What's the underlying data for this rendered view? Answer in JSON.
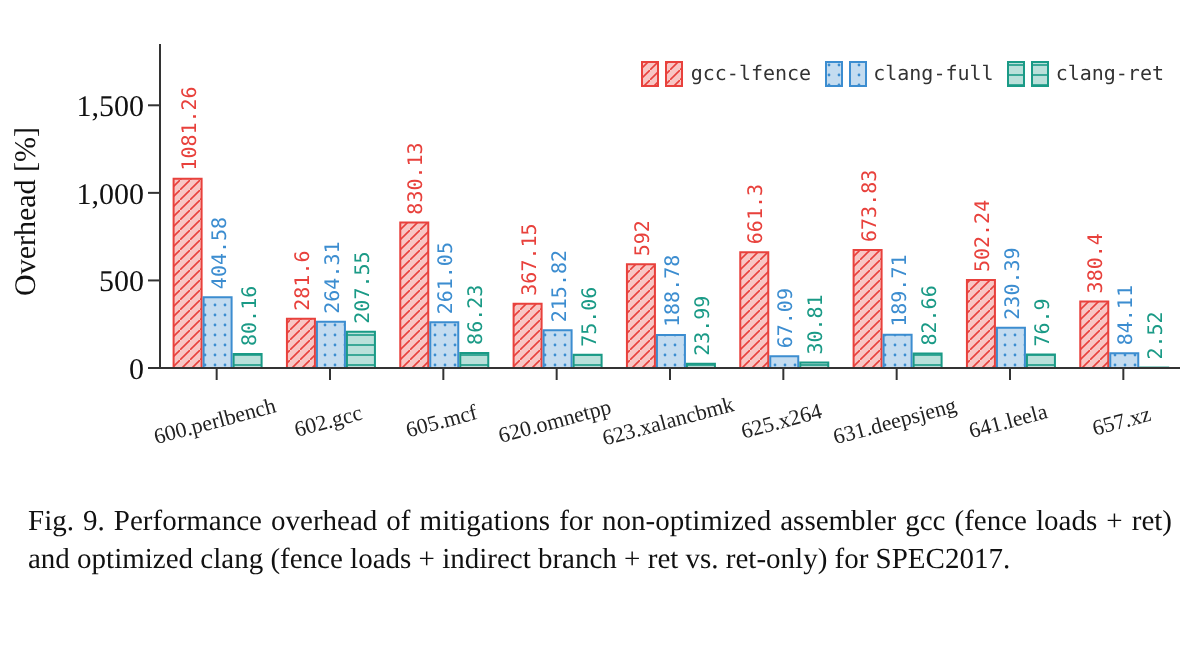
{
  "chart_data": {
    "type": "bar",
    "categories": [
      "600.perlbench",
      "602.gcc",
      "605.mcf",
      "620.omnetpp",
      "623.xalancbmk",
      "625.x264",
      "631.deepsjeng",
      "641.leela",
      "657.xz"
    ],
    "series": [
      {
        "name": "gcc-lfence",
        "color": "#e8413c",
        "values": [
          1081.26,
          281.6,
          830.13,
          367.15,
          592,
          661.3,
          673.83,
          502.24,
          380.4
        ]
      },
      {
        "name": "clang-full",
        "color": "#3c8dd0",
        "values": [
          404.58,
          264.31,
          261.05,
          215.82,
          188.78,
          67.09,
          189.71,
          230.39,
          84.11
        ]
      },
      {
        "name": "clang-ret",
        "color": "#1a9a86",
        "values": [
          80.16,
          207.55,
          86.23,
          75.06,
          23.99,
          30.81,
          82.66,
          76.9,
          2.52
        ]
      }
    ],
    "ylabel": "Overhead [%]",
    "ylim": [
      0,
      1850
    ],
    "yticks": [
      0,
      {
        "value": 500,
        "label": "500"
      },
      {
        "value": 1000,
        "label": "1,000"
      },
      {
        "value": 1500,
        "label": "1,500"
      }
    ],
    "data_labels": true,
    "legend": "top right",
    "grid": false,
    "annotations": [
      "Fig. 9.  Performance overhead of mitigations for non-optimized assembler gcc (fence loads + ret) and optimized clang (fence loads + indirect branch + ret vs. ret-only) for SPEC2017."
    ]
  }
}
